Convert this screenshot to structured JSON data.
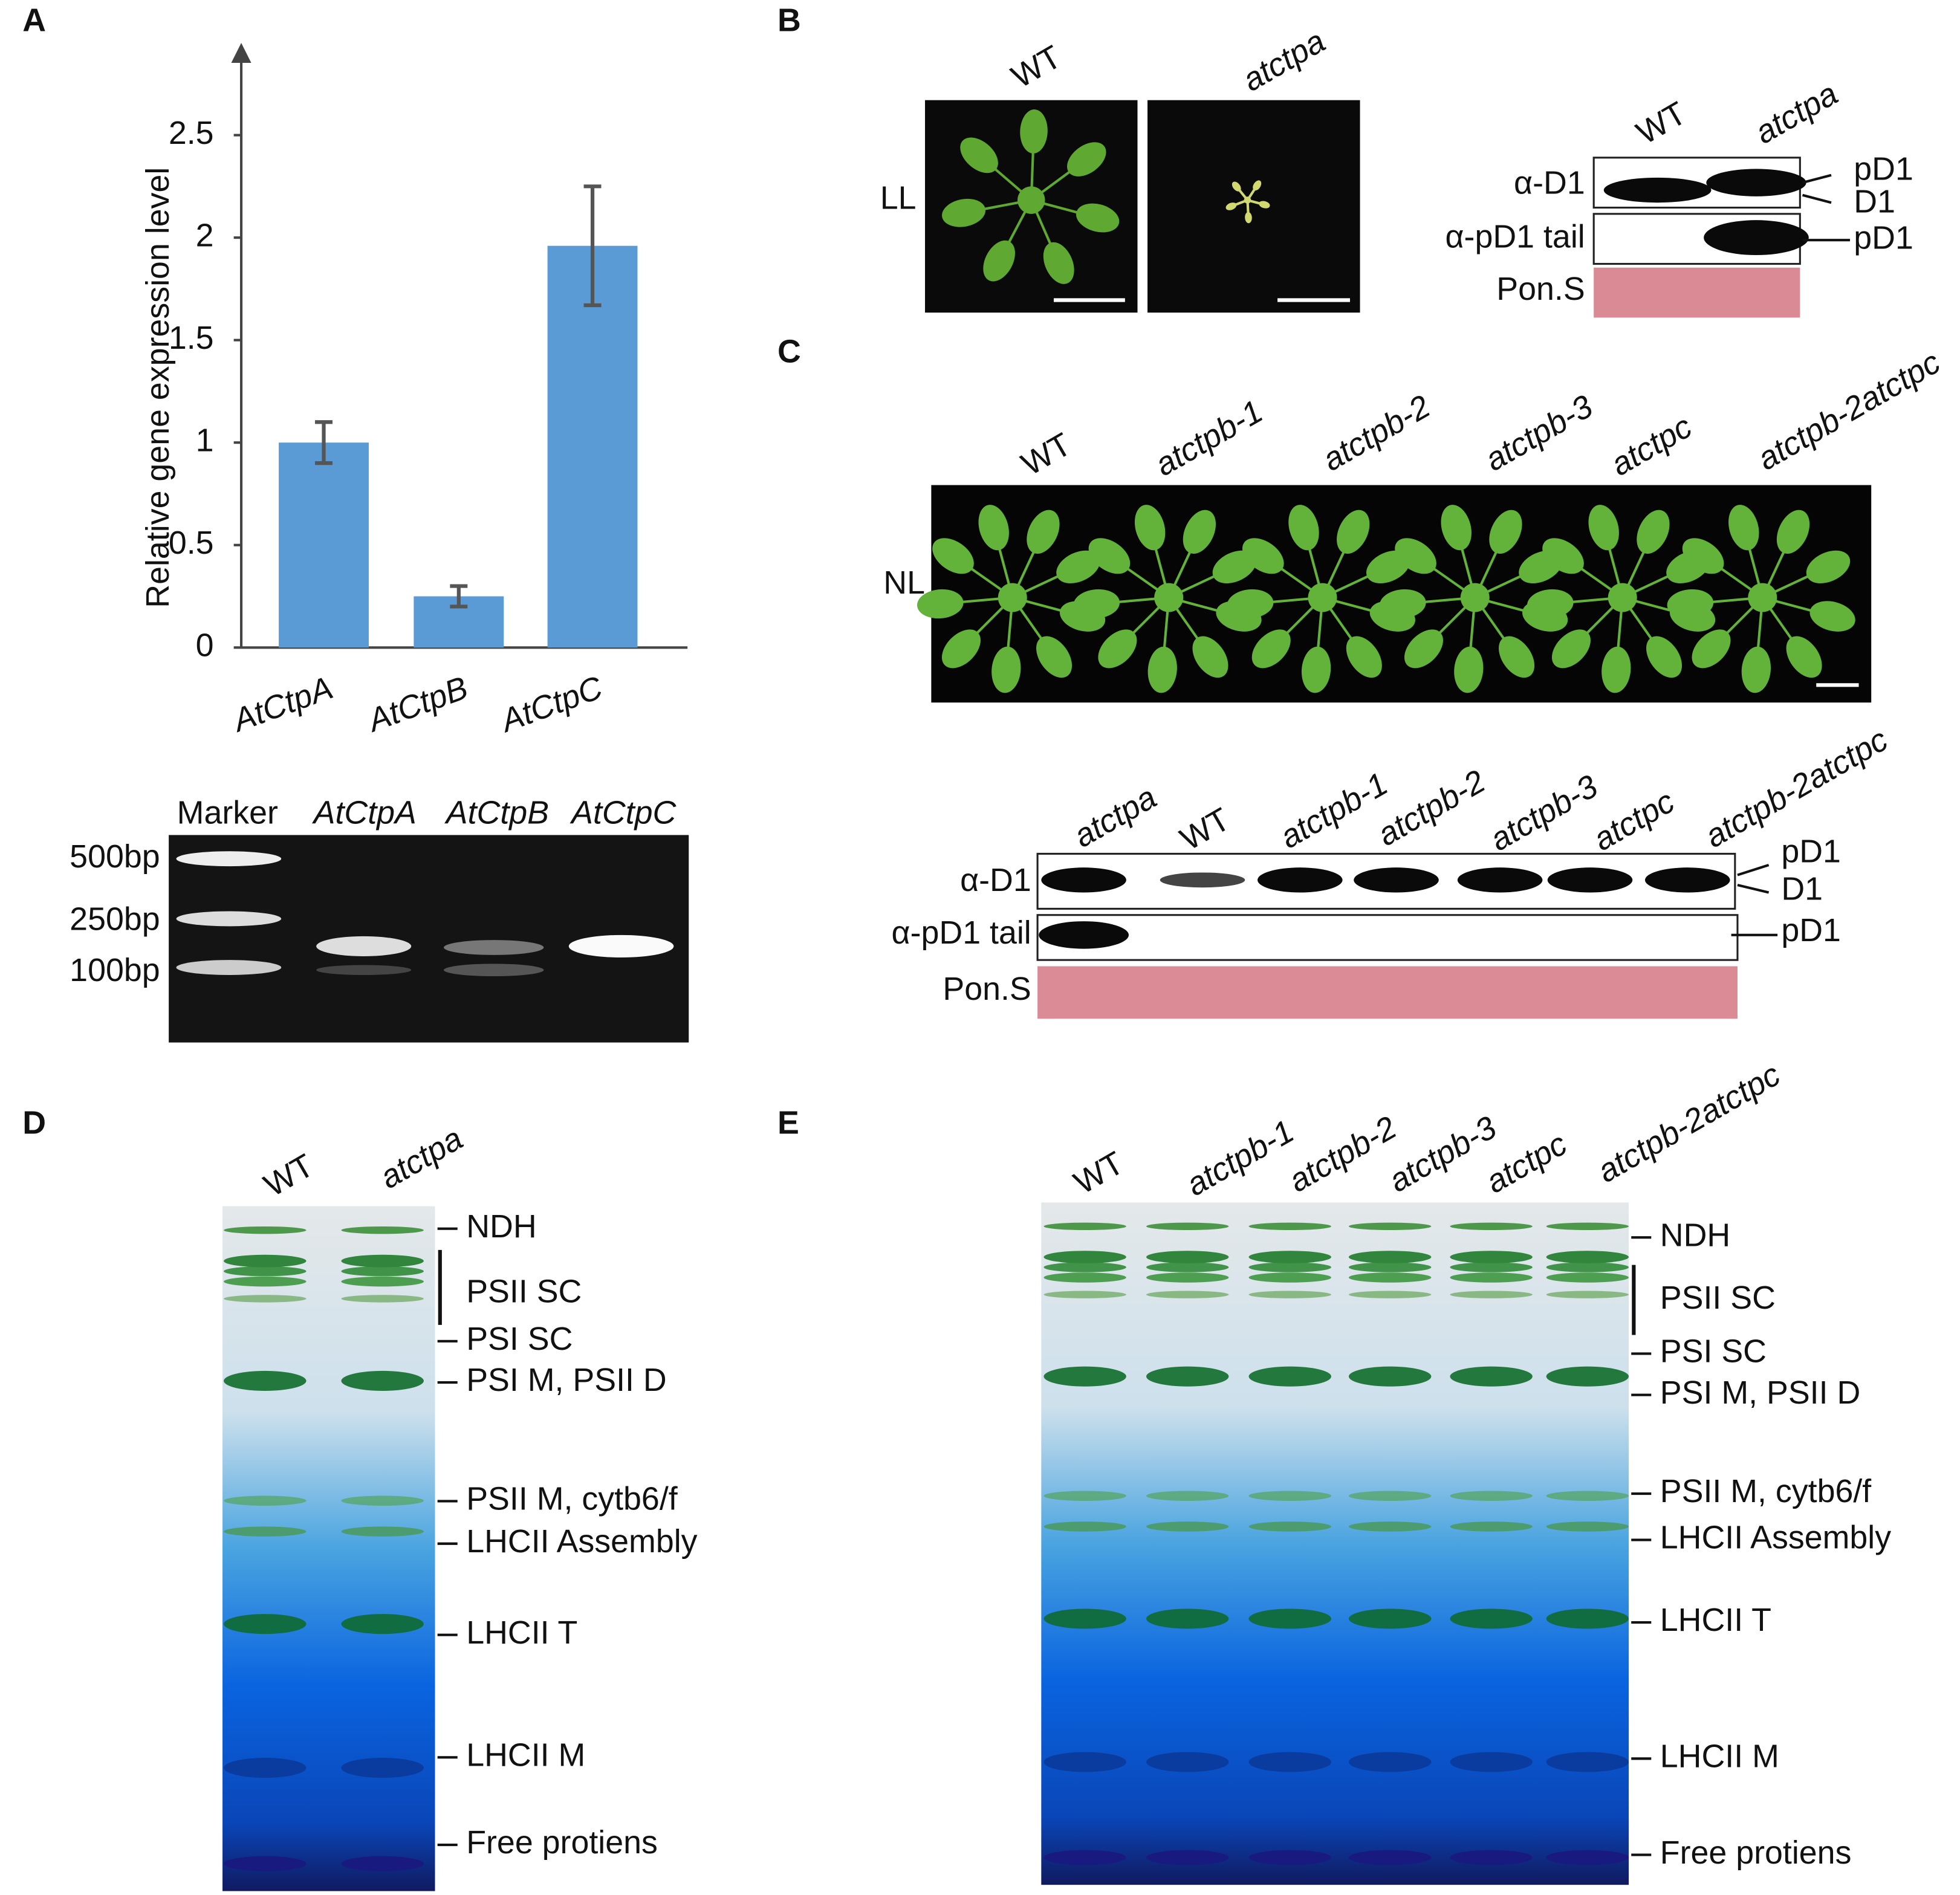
{
  "chart_data": {
    "type": "bar",
    "panel": "A",
    "y_label": "Relative gene expression level",
    "categories": [
      "AtCtpA",
      "AtCtpB",
      "AtCtpC"
    ],
    "values": [
      1.0,
      0.25,
      1.96
    ],
    "errors": [
      0.1,
      0.05,
      0.29
    ],
    "color": "#5b9bd5",
    "ylim": [
      0,
      2.95
    ],
    "yticks": [
      0,
      0.5,
      1,
      1.5,
      2,
      2.5
    ]
  },
  "panels": {
    "A": {
      "gel_lanes": [
        "Marker",
        "AtCtpA",
        "AtCtpB",
        "AtCtpC"
      ],
      "sizes": [
        "500bp",
        "250bp",
        "100bp"
      ]
    },
    "B": {
      "label": "B",
      "condition": "LL",
      "photo_lanes": [
        "WT",
        "atctpa"
      ],
      "blot_lanes": [
        "WT",
        "atctpa"
      ],
      "rows": [
        "α-D1",
        "α-pD1 tail",
        "Pon.S"
      ],
      "bands": [
        "pD1",
        "D1",
        "pD1"
      ]
    },
    "C": {
      "label": "C",
      "condition": "NL",
      "photo_lanes": [
        "WT",
        "atctpb-1",
        "atctpb-2",
        "atctpb-3",
        "atctpc",
        "atctpb-2atctpc"
      ],
      "blot_lanes": [
        "atctpa",
        "WT",
        "atctpb-1",
        "atctpb-2",
        "atctpb-3",
        "atctpc",
        "atctpb-2atctpc"
      ],
      "rows": [
        "α-D1",
        "α-pD1 tail",
        "Pon.S"
      ],
      "bands": [
        "pD1",
        "D1",
        "pD1"
      ]
    },
    "D": {
      "label": "D",
      "lanes": [
        "WT",
        "atctpa"
      ],
      "bands": [
        "NDH",
        "PSII SC",
        "PSI SC",
        "PSI M, PSII D",
        "PSII M, cytb6/f",
        "LHCII Assembly",
        "LHCII T",
        "LHCII M",
        "Free protiens"
      ]
    },
    "E": {
      "label": "E",
      "lanes": [
        "WT",
        "atctpb-1",
        "atctpb-2",
        "atctpb-3",
        "atctpc",
        "atctpb-2atctpc"
      ],
      "bands": [
        "NDH",
        "PSII SC",
        "PSI SC",
        "PSI M, PSII D",
        "PSII M, cytb6/f",
        "LHCII Assembly",
        "LHCII T",
        "LHCII M",
        "Free protiens"
      ]
    }
  }
}
